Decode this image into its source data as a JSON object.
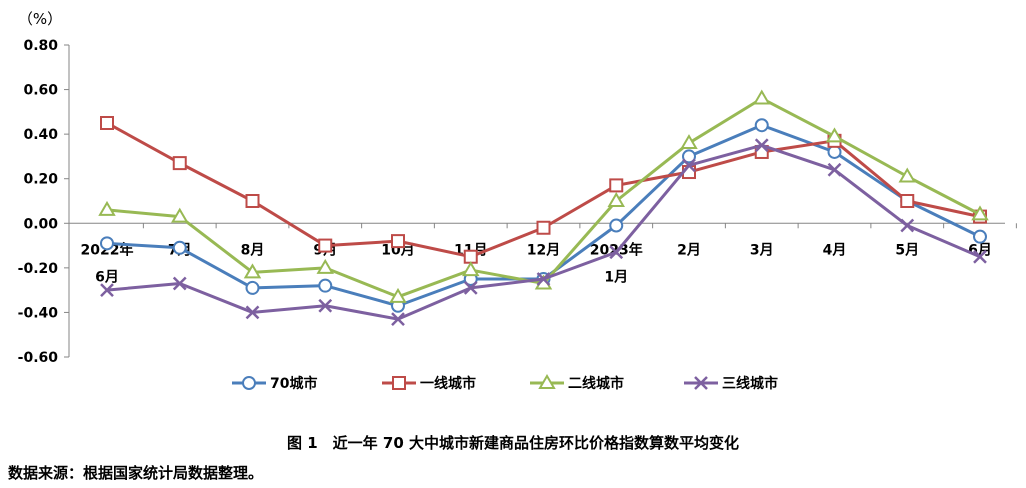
{
  "chart_data": {
    "type": "line",
    "unit_label": "（%）",
    "categories": [
      "2022年\n6月",
      "7月",
      "8月",
      "9月",
      "10月",
      "11月",
      "12月",
      "2023年\n1月",
      "2月",
      "3月",
      "4月",
      "5月",
      "6月"
    ],
    "y_ticks": [
      "0.80",
      "0.60",
      "0.40",
      "0.20",
      "0.00",
      "-0.20",
      "-0.40",
      "-0.60"
    ],
    "ylim": [
      -0.6,
      0.8
    ],
    "series": [
      {
        "name": "70城市",
        "color": "#4a7ebb",
        "marker": "circle",
        "values": [
          -0.09,
          -0.11,
          -0.29,
          -0.28,
          -0.37,
          -0.25,
          -0.25,
          -0.01,
          0.3,
          0.44,
          0.32,
          0.1,
          -0.06
        ]
      },
      {
        "name": "一线城市",
        "color": "#be4b48",
        "marker": "square",
        "values": [
          0.45,
          0.27,
          0.1,
          -0.1,
          -0.08,
          -0.15,
          -0.02,
          0.17,
          0.23,
          0.32,
          0.37,
          0.1,
          0.03
        ]
      },
      {
        "name": "二线城市",
        "color": "#98b954",
        "marker": "triangle",
        "values": [
          0.06,
          0.03,
          -0.22,
          -0.2,
          -0.33,
          -0.21,
          -0.27,
          0.1,
          0.36,
          0.56,
          0.39,
          0.21,
          0.04
        ]
      },
      {
        "name": "三线城市",
        "color": "#7d60a0",
        "marker": "x",
        "values": [
          -0.3,
          -0.27,
          -0.4,
          -0.37,
          -0.43,
          -0.29,
          -0.25,
          -0.13,
          0.26,
          0.35,
          0.24,
          -0.01,
          -0.15
        ]
      }
    ],
    "grid": false,
    "legend_position": "bottom"
  },
  "caption": "图 1　近一年 70 大中城市新建商品住房环比价格指数算数平均变化",
  "source": "数据来源：根据国家统计局数据整理。"
}
